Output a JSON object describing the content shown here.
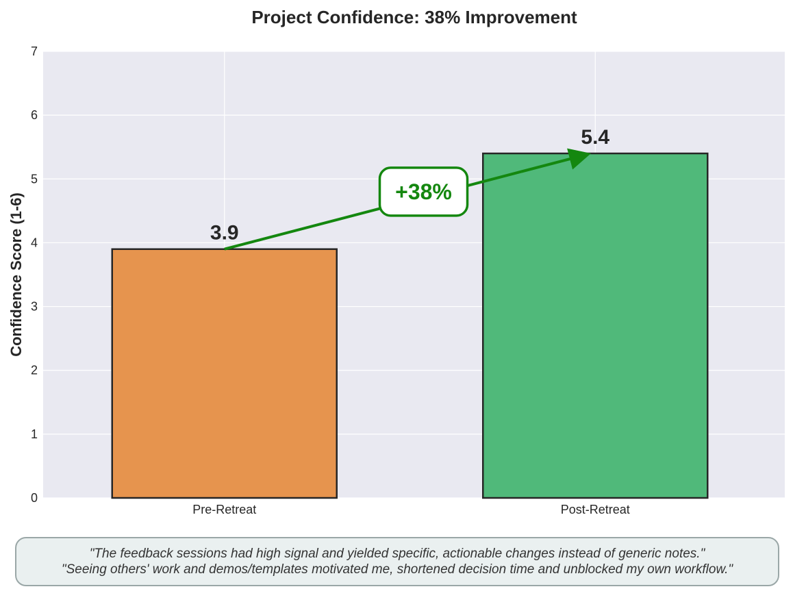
{
  "chart_data": {
    "type": "bar",
    "title": "Project Confidence: 38% Improvement",
    "xlabel": "",
    "ylabel": "Confidence Score (1-6)",
    "ylim": [
      0,
      7
    ],
    "yticks": [
      0,
      1,
      2,
      3,
      4,
      5,
      6,
      7
    ],
    "grid": true,
    "categories": [
      "Pre-Retreat",
      "Post-Retreat"
    ],
    "values": [
      3.9,
      5.4
    ],
    "value_labels": [
      "3.9",
      "5.4"
    ],
    "bar_colors": [
      "#e6944e",
      "#50b97a"
    ],
    "annotation": {
      "text": "+38%",
      "from_category": "Pre-Retreat",
      "to_category": "Post-Retreat",
      "color": "#14870f"
    }
  },
  "quotes": [
    "\"The feedback sessions had high signal and yielded specific, actionable changes instead of generic notes.\"",
    "\"Seeing others' work and demos/templates motivated me, shortened decision time and unblocked my own workflow.\""
  ],
  "colors": {
    "plot_background": "#e9e9f1",
    "grid": "#ffffff",
    "bar_edge": "#262626",
    "text": "#262626"
  }
}
